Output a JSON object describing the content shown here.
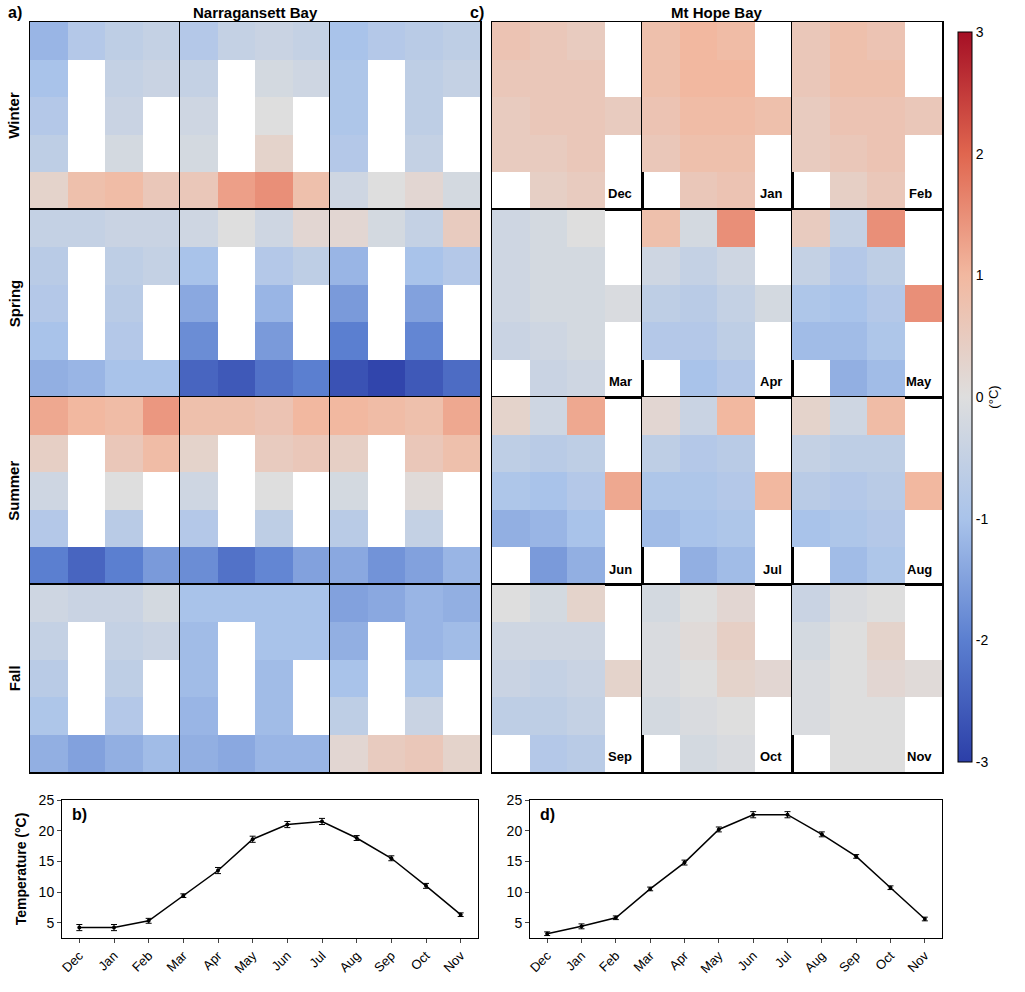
{
  "chart_data": [
    {
      "type": "heatmap",
      "label": "a)",
      "title": "Narragansett Bay",
      "tick_labels": false,
      "row_labels": [
        "Winter",
        "Spring",
        "Summer",
        "Fall"
      ],
      "panels": [
        {
          "cells": [
            [
              -1.2,
              -0.8,
              -0.6,
              -0.5
            ],
            [
              -1.0,
              null,
              -0.5,
              -0.4
            ],
            [
              -0.8,
              null,
              -0.4,
              null
            ],
            [
              -0.6,
              null,
              -0.2,
              null
            ],
            [
              0.3,
              0.8,
              0.9,
              0.6
            ]
          ]
        },
        {
          "cells": [
            [
              -0.8,
              -0.5,
              -0.4,
              -0.5
            ],
            [
              -0.5,
              null,
              -0.2,
              -0.3
            ],
            [
              -0.3,
              null,
              0.0,
              null
            ],
            [
              -0.2,
              null,
              0.3,
              null
            ],
            [
              0.6,
              1.3,
              1.5,
              0.8
            ]
          ]
        },
        {
          "cells": [
            [
              -1.0,
              -0.8,
              -0.7,
              -0.6
            ],
            [
              -0.9,
              null,
              -0.6,
              -0.5
            ],
            [
              -0.9,
              null,
              -0.6,
              null
            ],
            [
              -0.8,
              null,
              -0.5,
              null
            ],
            [
              -0.3,
              0.0,
              0.2,
              -0.2
            ]
          ]
        },
        {
          "cells": [
            [
              -0.5,
              -0.5,
              -0.4,
              -0.4
            ],
            [
              -0.7,
              null,
              -0.6,
              -0.5
            ],
            [
              -0.8,
              null,
              -0.7,
              null
            ],
            [
              -1.0,
              null,
              -0.8,
              null
            ],
            [
              -1.3,
              -1.2,
              -1.0,
              -1.0
            ]
          ]
        },
        {
          "cells": [
            [
              -0.3,
              0.0,
              -0.3,
              0.2
            ],
            [
              -1.0,
              null,
              -0.8,
              -0.6
            ],
            [
              -1.4,
              null,
              -1.2,
              null
            ],
            [
              -1.8,
              null,
              -1.6,
              null
            ],
            [
              -2.4,
              -2.6,
              -2.2,
              -2.0
            ]
          ]
        },
        {
          "cells": [
            [
              0.2,
              -0.2,
              -0.5,
              0.5
            ],
            [
              -1.2,
              null,
              -1.0,
              -0.8
            ],
            [
              -1.6,
              null,
              -1.5,
              null
            ],
            [
              -2.0,
              null,
              -1.9,
              null
            ],
            [
              -2.7,
              -2.9,
              -2.6,
              -2.3
            ]
          ]
        },
        {
          "cells": [
            [
              1.2,
              1.0,
              0.9,
              1.4
            ],
            [
              0.4,
              null,
              0.6,
              0.9
            ],
            [
              -0.3,
              null,
              0.0,
              null
            ],
            [
              -0.8,
              null,
              -0.7,
              null
            ],
            [
              -2.0,
              -2.4,
              -2.0,
              -1.6
            ]
          ]
        },
        {
          "cells": [
            [
              0.8,
              0.8,
              0.7,
              1.0
            ],
            [
              0.3,
              null,
              0.5,
              0.6
            ],
            [
              -0.3,
              null,
              0.0,
              null
            ],
            [
              -0.8,
              null,
              -0.6,
              null
            ],
            [
              -1.8,
              -2.2,
              -1.9,
              -1.5
            ]
          ]
        },
        {
          "cells": [
            [
              1.0,
              0.9,
              0.8,
              1.2
            ],
            [
              0.4,
              null,
              0.6,
              0.8
            ],
            [
              -0.2,
              null,
              0.1,
              null
            ],
            [
              -0.7,
              null,
              -0.5,
              null
            ],
            [
              -1.4,
              -1.7,
              -1.5,
              -1.2
            ]
          ]
        },
        {
          "cells": [
            [
              -0.3,
              -0.4,
              -0.4,
              -0.2
            ],
            [
              -0.5,
              null,
              -0.5,
              -0.4
            ],
            [
              -0.7,
              null,
              -0.6,
              null
            ],
            [
              -0.9,
              null,
              -0.8,
              null
            ],
            [
              -1.3,
              -1.5,
              -1.3,
              -1.1
            ]
          ]
        },
        {
          "cells": [
            [
              -1.0,
              -1.0,
              -1.0,
              -1.0
            ],
            [
              -1.1,
              null,
              -1.0,
              -1.0
            ],
            [
              -1.1,
              null,
              -1.1,
              null
            ],
            [
              -1.2,
              null,
              -1.1,
              null
            ],
            [
              -1.3,
              -1.4,
              -1.2,
              -1.2
            ]
          ]
        },
        {
          "cells": [
            [
              -1.5,
              -1.4,
              -1.2,
              -1.3
            ],
            [
              -1.3,
              null,
              -1.2,
              -1.1
            ],
            [
              -1.0,
              null,
              -0.9,
              null
            ],
            [
              -0.6,
              null,
              -0.4,
              null
            ],
            [
              0.2,
              0.5,
              0.6,
              0.3
            ]
          ]
        }
      ]
    },
    {
      "type": "heatmap",
      "label": "c)",
      "title": "Mt Hope Bay",
      "tick_labels": false,
      "colorbar": {
        "title": "(°C)",
        "range": [
          -3,
          3
        ],
        "ticks": [
          -3,
          -2,
          -1,
          0,
          1,
          2,
          3
        ]
      },
      "panels": [
        {
          "name": "Dec",
          "cells": [
            [
              0.7,
              0.6,
              0.5,
              null
            ],
            [
              0.6,
              0.6,
              0.6,
              null
            ],
            [
              0.5,
              0.6,
              0.6,
              0.5
            ],
            [
              0.5,
              0.5,
              0.6,
              null
            ],
            [
              null,
              0.4,
              0.5,
              null
            ]
          ]
        },
        {
          "name": "Jan",
          "cells": [
            [
              0.8,
              1.0,
              0.9,
              null
            ],
            [
              0.8,
              1.0,
              1.0,
              null
            ],
            [
              0.7,
              0.9,
              0.9,
              0.8
            ],
            [
              0.6,
              0.8,
              0.8,
              null
            ],
            [
              null,
              0.6,
              0.7,
              null
            ]
          ]
        },
        {
          "name": "Feb",
          "cells": [
            [
              0.6,
              0.8,
              0.7,
              null
            ],
            [
              0.6,
              0.8,
              0.8,
              null
            ],
            [
              0.5,
              0.7,
              0.7,
              0.6
            ],
            [
              0.5,
              0.6,
              0.7,
              null
            ],
            [
              null,
              0.4,
              0.6,
              null
            ]
          ]
        },
        {
          "name": "Mar",
          "cells": [
            [
              -0.3,
              -0.2,
              0.0,
              null
            ],
            [
              -0.3,
              -0.2,
              -0.2,
              null
            ],
            [
              -0.3,
              -0.2,
              -0.2,
              -0.1
            ],
            [
              -0.4,
              -0.3,
              -0.2,
              null
            ],
            [
              null,
              -0.4,
              -0.3,
              null
            ]
          ]
        },
        {
          "name": "Apr",
          "cells": [
            [
              0.8,
              -0.2,
              1.5,
              null
            ],
            [
              -0.3,
              -0.5,
              -0.3,
              null
            ],
            [
              -0.6,
              -0.7,
              -0.5,
              -0.2
            ],
            [
              -0.8,
              -0.8,
              -0.6,
              null
            ],
            [
              null,
              -1.0,
              -0.8,
              null
            ]
          ]
        },
        {
          "name": "May",
          "cells": [
            [
              0.5,
              -0.5,
              1.5,
              null
            ],
            [
              -0.5,
              -0.8,
              -0.6,
              null
            ],
            [
              -0.9,
              -1.0,
              -0.8,
              1.5
            ],
            [
              -1.1,
              -1.1,
              -0.9,
              null
            ],
            [
              null,
              -1.3,
              -1.1,
              null
            ]
          ]
        },
        {
          "name": "Jun",
          "cells": [
            [
              0.3,
              -0.3,
              1.2,
              null
            ],
            [
              -0.6,
              -0.7,
              -0.6,
              null
            ],
            [
              -0.9,
              -1.0,
              -0.8,
              1.2
            ],
            [
              -1.3,
              -1.2,
              -1.0,
              null
            ],
            [
              null,
              -1.6,
              -1.3,
              null
            ]
          ]
        },
        {
          "name": "Jul",
          "cells": [
            [
              0.2,
              -0.4,
              1.0,
              null
            ],
            [
              -0.6,
              -0.8,
              -0.7,
              null
            ],
            [
              -0.9,
              -0.9,
              -0.8,
              1.0
            ],
            [
              -1.1,
              -1.0,
              -0.9,
              null
            ],
            [
              null,
              -1.3,
              -1.1,
              null
            ]
          ]
        },
        {
          "name": "Aug",
          "cells": [
            [
              0.3,
              -0.3,
              0.9,
              null
            ],
            [
              -0.5,
              -0.6,
              -0.6,
              null
            ],
            [
              -0.7,
              -0.8,
              -0.7,
              1.0
            ],
            [
              -1.0,
              -0.9,
              -0.8,
              null
            ],
            [
              null,
              -1.1,
              -0.9,
              null
            ]
          ]
        },
        {
          "name": "Sep",
          "cells": [
            [
              0.0,
              -0.2,
              0.3,
              null
            ],
            [
              -0.3,
              -0.3,
              -0.3,
              null
            ],
            [
              -0.4,
              -0.5,
              -0.4,
              0.3
            ],
            [
              -0.6,
              -0.6,
              -0.5,
              null
            ],
            [
              null,
              -0.8,
              -0.7,
              null
            ]
          ]
        },
        {
          "name": "Oct",
          "cells": [
            [
              -0.2,
              0.0,
              0.2,
              null
            ],
            [
              -0.1,
              0.1,
              0.4,
              null
            ],
            [
              -0.1,
              0.0,
              0.3,
              0.2
            ],
            [
              -0.2,
              -0.1,
              0.0,
              null
            ],
            [
              null,
              -0.2,
              -0.1,
              null
            ]
          ]
        },
        {
          "name": "Nov",
          "cells": [
            [
              -0.4,
              -0.1,
              0.0,
              null
            ],
            [
              -0.2,
              0.0,
              0.3,
              null
            ],
            [
              -0.1,
              0.0,
              0.2,
              0.1
            ],
            [
              -0.1,
              0.0,
              0.0,
              null
            ],
            [
              null,
              0.0,
              0.0,
              null
            ]
          ]
        }
      ]
    },
    {
      "type": "line",
      "label": "b)",
      "ylabel": "Temperature (°C)",
      "color": "#000000",
      "marker": "circle",
      "categories": [
        "Dec",
        "Jan",
        "Feb",
        "Mar",
        "Apr",
        "May",
        "Jun",
        "Jul",
        "Aug",
        "Sep",
        "Oct",
        "Nov"
      ],
      "values": [
        4.2,
        4.2,
        5.3,
        9.4,
        13.5,
        18.6,
        21.0,
        21.5,
        18.8,
        15.5,
        11.0,
        6.3
      ],
      "errors": [
        0.5,
        0.5,
        0.4,
        0.3,
        0.5,
        0.5,
        0.5,
        0.5,
        0.4,
        0.4,
        0.4,
        0.3
      ],
      "ylim": [
        2.5,
        25
      ],
      "yticks": [
        5,
        10,
        15,
        20,
        25
      ]
    },
    {
      "type": "line",
      "label": "d)",
      "color": "#000000",
      "marker": "circle",
      "categories": [
        "Dec",
        "Jan",
        "Feb",
        "Mar",
        "Apr",
        "May",
        "Jun",
        "Jul",
        "Aug",
        "Sep",
        "Oct",
        "Nov"
      ],
      "values": [
        3.2,
        4.4,
        5.8,
        10.5,
        14.8,
        20.2,
        22.6,
        22.6,
        19.4,
        15.8,
        10.7,
        5.6
      ],
      "errors": [
        0.3,
        0.4,
        0.3,
        0.3,
        0.4,
        0.4,
        0.5,
        0.5,
        0.4,
        0.3,
        0.3,
        0.3
      ],
      "ylim": [
        2.5,
        25
      ],
      "yticks": [
        5,
        10,
        15,
        20,
        25
      ]
    }
  ]
}
